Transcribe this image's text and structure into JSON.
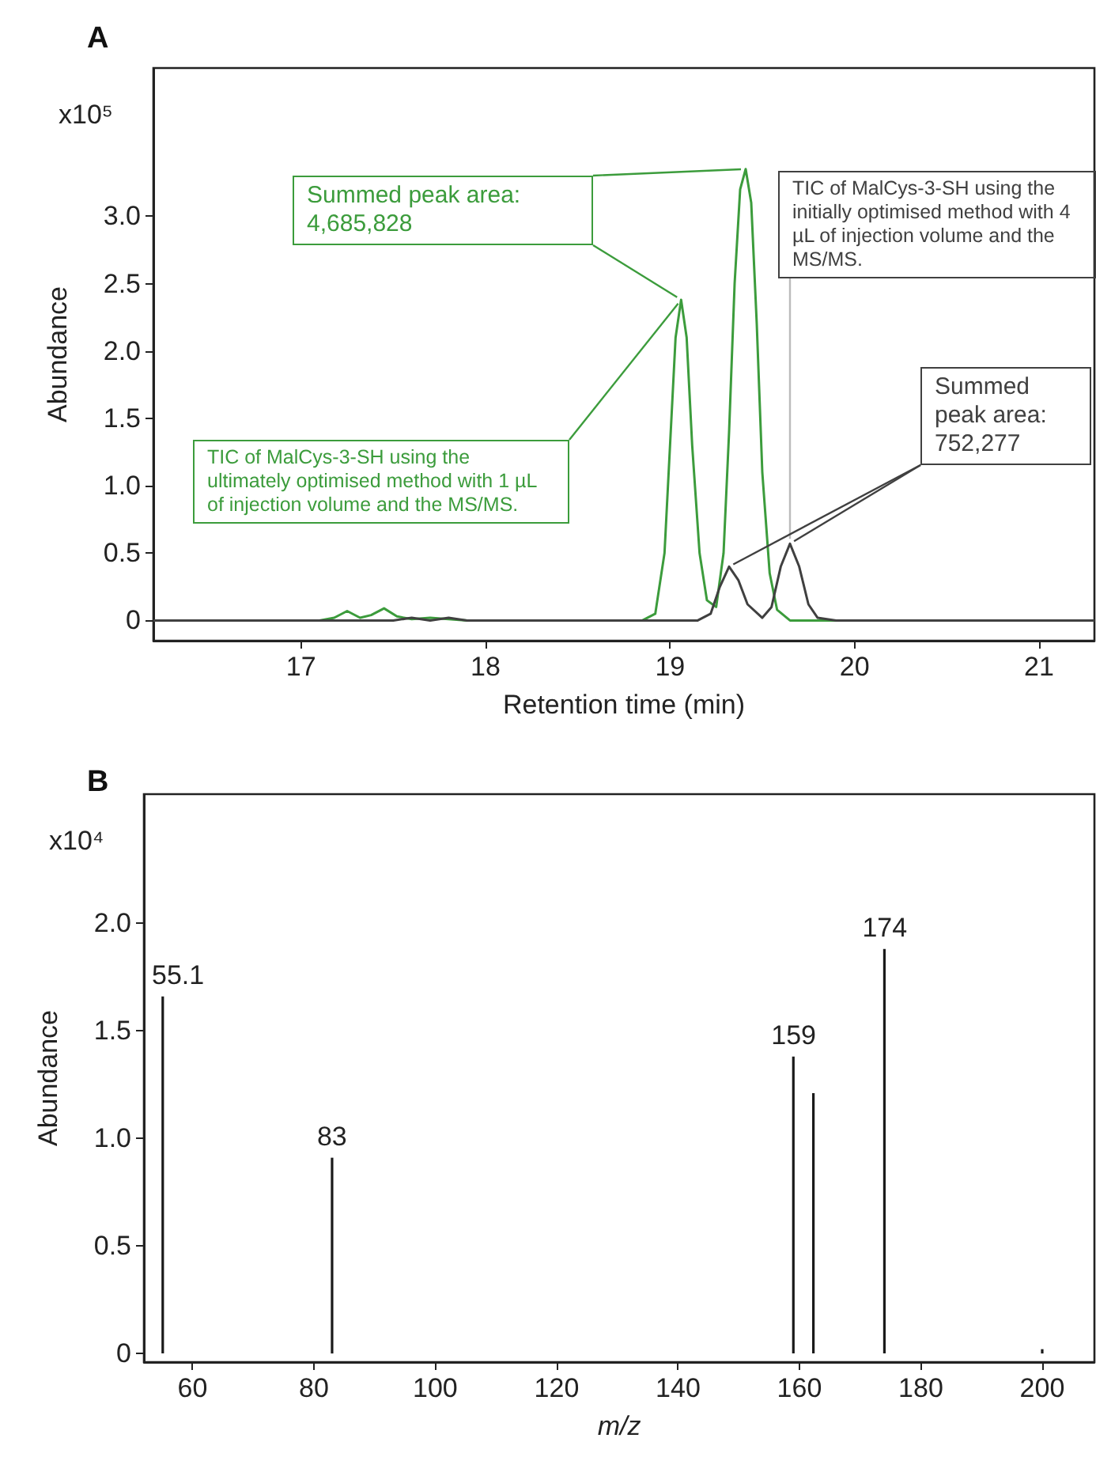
{
  "chart_data": [
    {
      "type": "line",
      "title": "A",
      "xlabel": "Retention time (min)",
      "ylabel": "Abundance",
      "xlim": [
        16.2,
        21.3
      ],
      "xticks": [
        17,
        18,
        19,
        20,
        21
      ],
      "ylim": [
        -0.15,
        4.1
      ],
      "yticks": [
        {
          "value": 0,
          "label": "0"
        },
        {
          "value": 0.5,
          "label": "0.5"
        },
        {
          "value": 1,
          "label": "1.0"
        },
        {
          "value": 1.5,
          "label": "1.5"
        },
        {
          "value": 2,
          "label": "2.0"
        },
        {
          "value": 2.5,
          "label": "2.5"
        },
        {
          "value": 3,
          "label": "3.0"
        }
      ],
      "grid": false,
      "marker": "none",
      "line_style": "solid",
      "series": [
        {
          "color": "#3c9c3c",
          "x": [
            16.2,
            17.1,
            17.18,
            17.25,
            17.32,
            17.38,
            17.45,
            17.52,
            17.6,
            17.7,
            17.8,
            17.9,
            18.85,
            18.92,
            18.97,
            19.0,
            19.03,
            19.06,
            19.09,
            19.12,
            19.16,
            19.2,
            19.25,
            19.29,
            19.32,
            19.35,
            19.38,
            19.41,
            19.44,
            19.47,
            19.5,
            19.54,
            19.58,
            19.65,
            21.3
          ],
          "values": [
            0,
            0,
            0.02,
            0.07,
            0.02,
            0.04,
            0.09,
            0.03,
            0.01,
            0.02,
            0.01,
            0,
            0,
            0.05,
            0.5,
            1.3,
            2.1,
            2.38,
            2.1,
            1.3,
            0.5,
            0.15,
            0.1,
            0.5,
            1.4,
            2.5,
            3.2,
            3.35,
            3.1,
            2.2,
            1.1,
            0.35,
            0.08,
            0,
            0
          ]
        },
        {
          "color": "#404040",
          "x": [
            16.2,
            17.5,
            17.6,
            17.7,
            17.8,
            17.9,
            19.15,
            19.22,
            19.27,
            19.32,
            19.37,
            19.42,
            19.5,
            19.55,
            19.6,
            19.65,
            19.7,
            19.75,
            19.8,
            19.9,
            21.3
          ],
          "values": [
            0,
            0,
            0.02,
            0,
            0.02,
            0,
            0,
            0.05,
            0.25,
            0.4,
            0.3,
            0.12,
            0.02,
            0.1,
            0.4,
            0.57,
            0.4,
            0.12,
            0.02,
            0,
            0
          ]
        }
      ],
      "annotations": [
        "x10⁵",
        "Summed peak area: 4,685,828",
        {
          "text": "TIC of MalCys-3-SH using the initially optimised method with 4 µL of injection volume and the MS/MS.",
          "x": 19.65,
          "y": 0.57
        },
        {
          "text": "Summed peak area: 752,277",
          "x": 19.32,
          "y": 0.4
        },
        "TIC of MalCys-3-SH using the ultimately optimised method with 1 µL of injection volume and the MS/MS."
      ]
    },
    {
      "type": "bar",
      "title": "B",
      "xlabel": "m/z",
      "ylabel": "Abundance",
      "xlim": [
        52,
        208.6
      ],
      "xticks": [
        60,
        80,
        100,
        120,
        140,
        160,
        180,
        200
      ],
      "ylim": [
        -0.04,
        2.6
      ],
      "yticks": [
        {
          "value": 0,
          "label": "0"
        },
        {
          "value": 0.5,
          "label": "0.5"
        },
        {
          "value": 1,
          "label": "1.0"
        },
        {
          "value": 1.5,
          "label": "1.5"
        },
        {
          "value": 2,
          "label": "2.0"
        }
      ],
      "grid": false,
      "series": [
        {
          "color": "#1a1a1a",
          "x": [
            55.1,
            83,
            159,
            162.3,
            174,
            200
          ],
          "values": [
            1.66,
            0.91,
            1.38,
            1.21,
            1.88,
            0.02
          ]
        }
      ],
      "annotations": [
        "x10⁴",
        {
          "text": "55.1",
          "x": 55.1,
          "y": 1.66
        },
        {
          "text": "83",
          "x": 83,
          "y": 0.91
        },
        {
          "text": "159",
          "x": 159,
          "y": 1.38
        },
        {
          "text": "174",
          "x": 174,
          "y": 1.88
        }
      ]
    }
  ]
}
